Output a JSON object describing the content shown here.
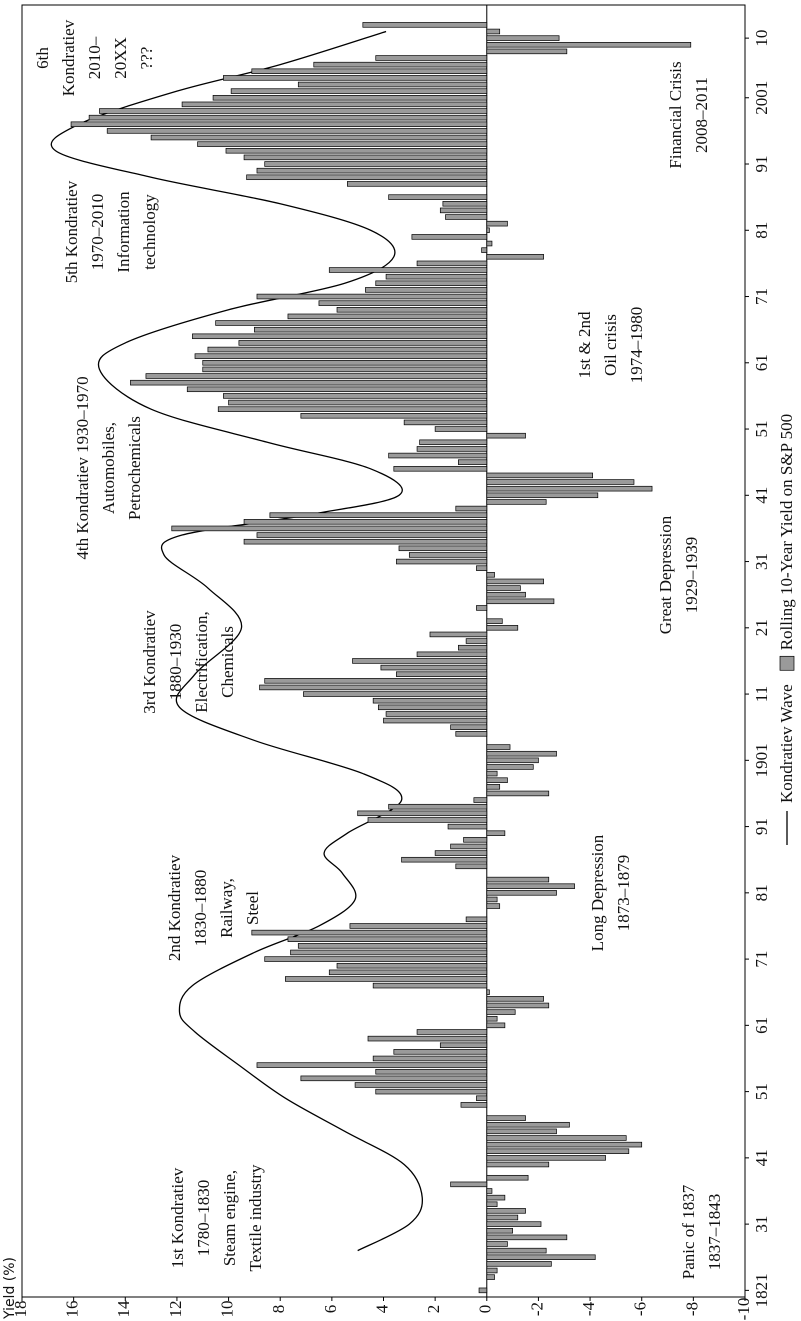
{
  "chart_data": {
    "type": "bar",
    "orientation": "horizontal",
    "x_label": "Rolling 10-Year Yield on S&P 500",
    "y_label": "Yield (%)",
    "xlim": [
      1820,
      2015
    ],
    "xticks": [
      1821,
      {
        "value": 1831,
        "label": "31"
      },
      {
        "value": 1841,
        "label": "41"
      },
      {
        "value": 1851,
        "label": "51"
      },
      {
        "value": 1861,
        "label": "61"
      },
      {
        "value": 1871,
        "label": "71"
      },
      {
        "value": 1881,
        "label": "81"
      },
      {
        "value": 1891,
        "label": "91"
      },
      1901,
      {
        "value": 1911,
        "label": "11"
      },
      {
        "value": 1921,
        "label": "21"
      },
      {
        "value": 1931,
        "label": "31"
      },
      {
        "value": 1941,
        "label": "41"
      },
      {
        "value": 1951,
        "label": "51"
      },
      {
        "value": 1961,
        "label": "61"
      },
      {
        "value": 1971,
        "label": "71"
      },
      {
        "value": 1981,
        "label": "81"
      },
      {
        "value": 1991,
        "label": "91"
      },
      2001,
      {
        "value": 2010,
        "label": "10"
      }
    ],
    "ylim": [
      -10,
      18
    ],
    "yticks": [
      18,
      16,
      14,
      12,
      10,
      8,
      6,
      4,
      2,
      0,
      -2,
      -4,
      -6,
      -8,
      -10
    ],
    "x": [
      1821,
      1822,
      1823,
      1824,
      1825,
      1826,
      1827,
      1828,
      1829,
      1830,
      1831,
      1832,
      1833,
      1834,
      1835,
      1836,
      1837,
      1838,
      1839,
      1840,
      1841,
      1842,
      1843,
      1844,
      1845,
      1846,
      1847,
      1848,
      1849,
      1850,
      1851,
      1852,
      1853,
      1854,
      1855,
      1856,
      1857,
      1858,
      1859,
      1860,
      1861,
      1862,
      1863,
      1864,
      1865,
      1866,
      1867,
      1868,
      1869,
      1870,
      1871,
      1872,
      1873,
      1874,
      1875,
      1876,
      1877,
      1878,
      1879,
      1880,
      1881,
      1882,
      1883,
      1884,
      1885,
      1886,
      1887,
      1888,
      1889,
      1890,
      1891,
      1892,
      1893,
      1894,
      1895,
      1896,
      1897,
      1898,
      1899,
      1900,
      1901,
      1902,
      1903,
      1904,
      1905,
      1906,
      1907,
      1908,
      1909,
      1910,
      1911,
      1912,
      1913,
      1914,
      1915,
      1916,
      1917,
      1918,
      1919,
      1920,
      1921,
      1922,
      1923,
      1924,
      1925,
      1926,
      1927,
      1928,
      1929,
      1930,
      1931,
      1932,
      1933,
      1934,
      1935,
      1936,
      1937,
      1938,
      1939,
      1940,
      1941,
      1942,
      1943,
      1944,
      1945,
      1946,
      1947,
      1948,
      1949,
      1950,
      1951,
      1952,
      1953,
      1954,
      1955,
      1956,
      1957,
      1958,
      1959,
      1960,
      1961,
      1962,
      1963,
      1964,
      1965,
      1966,
      1967,
      1968,
      1969,
      1970,
      1971,
      1972,
      1973,
      1974,
      1975,
      1976,
      1977,
      1978,
      1979,
      1980,
      1981,
      1982,
      1983,
      1984,
      1985,
      1986,
      1987,
      1988,
      1989,
      1990,
      1991,
      1992,
      1993,
      1994,
      1995,
      1996,
      1997,
      1998,
      1999,
      2000,
      2001,
      2002,
      2003,
      2004,
      2005,
      2006,
      2007,
      2008,
      2009,
      2010,
      2011,
      2012
    ],
    "series": [
      {
        "name": "Kondratiev Wave",
        "type": "line",
        "color": "#000000",
        "x": [
          1827,
          1831,
          1835,
          1840,
          1845,
          1850,
          1855,
          1860,
          1863,
          1867,
          1872,
          1876,
          1880,
          1884,
          1887,
          1890,
          1895,
          1899,
          1904,
          1909,
          1914,
          1921,
          1927,
          1932,
          1935,
          1938,
          1941,
          1945,
          1949,
          1954,
          1960,
          1964,
          1969,
          1973,
          1977,
          1981,
          1985,
          1989,
          1993,
          1997,
          2002,
          2006,
          2011
        ],
        "values": [
          5.0,
          3.0,
          2.5,
          3.2,
          5.5,
          7.8,
          9.6,
          11.3,
          11.9,
          11.4,
          9.0,
          6.5,
          5.1,
          5.6,
          6.3,
          5.4,
          3.3,
          4.8,
          9.0,
          11.9,
          11.3,
          9.5,
          10.8,
          12.5,
          11.8,
          7.0,
          3.4,
          4.5,
          8.5,
          13.0,
          15.0,
          14.0,
          10.0,
          5.5,
          3.6,
          4.5,
          8.0,
          13.0,
          16.7,
          15.8,
          12.0,
          8.0,
          3.9
        ]
      },
      {
        "name": "Rolling 10-Year Yield on S&P 500",
        "type": "bar",
        "color": "#9a9a9a",
        "values": [
          0.3,
          0,
          -0.3,
          -0.4,
          -2.5,
          -4.2,
          -2.3,
          -0.8,
          -3.1,
          -1.0,
          -2.1,
          -1.2,
          -1.5,
          -0.4,
          -0.7,
          -0.2,
          1.4,
          -1.6,
          0,
          -2.4,
          -4.6,
          -5.5,
          -6.0,
          -5.4,
          -2.7,
          -3.2,
          -1.5,
          0,
          1.0,
          0.4,
          4.3,
          5.1,
          7.2,
          4.3,
          8.9,
          4.4,
          3.6,
          1.8,
          4.6,
          2.7,
          -0.7,
          -0.4,
          -1.1,
          -2.4,
          -2.2,
          -0.1,
          4.4,
          7.8,
          6.1,
          5.8,
          8.6,
          7.6,
          7.3,
          7.7,
          9.1,
          5.3,
          0.8,
          0,
          -0.5,
          -0.4,
          -2.7,
          -3.4,
          -2.4,
          0,
          1.2,
          3.3,
          2.0,
          1.4,
          0.9,
          -0.7,
          1.5,
          4.6,
          5.0,
          3.8,
          0.5,
          -2.4,
          -0.5,
          -0.8,
          -0.4,
          -1.8,
          -2.0,
          -2.7,
          -0.9,
          0,
          1.2,
          1.4,
          4.0,
          3.9,
          4.2,
          4.4,
          7.1,
          8.8,
          8.6,
          3.5,
          4.1,
          5.2,
          2.7,
          1.1,
          0.8,
          2.2,
          -1.2,
          -0.6,
          0,
          0.4,
          -2.6,
          -1.5,
          -1.3,
          -2.2,
          -0.3,
          0.4,
          3.5,
          3.0,
          3.4,
          9.4,
          8.9,
          12.2,
          9.4,
          8.4,
          1.2,
          -2.3,
          -4.3,
          -6.4,
          -5.7,
          -4.1,
          3.6,
          1.1,
          3.8,
          2.7,
          2.6,
          -1.5,
          2.0,
          3.2,
          7.2,
          10.4,
          10.0,
          10.2,
          11.6,
          13.8,
          13.2,
          11.0,
          11.0,
          11.3,
          10.8,
          9.6,
          11.4,
          9.0,
          10.5,
          7.7,
          5.8,
          6.5,
          8.9,
          4.7,
          4.3,
          3.9,
          6.1,
          2.7,
          -2.2,
          0.2,
          -0.2,
          2.9,
          -0.1,
          -0.8,
          1.6,
          1.8,
          1.7,
          3.8,
          0,
          5.4,
          9.3,
          8.9,
          8.6,
          9.4,
          10.1,
          11.2,
          13.0,
          14.7,
          16.1,
          15.4,
          15.0,
          11.8,
          10.6,
          9.9,
          7.3,
          10.2,
          9.1,
          6.7,
          4.3,
          -3.1,
          -7.9,
          -2.8,
          -0.5,
          4.8
        ]
      }
    ],
    "annotations": [
      {
        "lines": [
          "1st Kondratiev",
          "1780–1830",
          "Steam engine,",
          "Textile industry"
        ]
      },
      {
        "lines": [
          "2nd Kondratiev",
          "1830–1880",
          "Railway,",
          "Steel"
        ]
      },
      {
        "lines": [
          "3rd Kondratiev",
          "1880–1930",
          "Electrification,",
          "Chemicals"
        ]
      },
      {
        "lines": [
          "4th Kondratiev 1930–1970",
          "Automobiles,",
          "Petrochemicals"
        ]
      },
      {
        "lines": [
          "5th Kondratiev",
          "1970–2010",
          "Information",
          "technology"
        ]
      },
      {
        "lines": [
          "6th",
          "Kondratiev",
          "2010–",
          "20XX",
          "???"
        ]
      },
      {
        "lines": [
          "Panic of 1837",
          "1837–1843"
        ]
      },
      {
        "lines": [
          "Long Depression",
          "1873–1879"
        ]
      },
      {
        "lines": [
          "Great Depression",
          "1929–1939"
        ]
      },
      {
        "lines": [
          "1st & 2nd",
          "Oil crisis",
          "1974–1980"
        ]
      },
      {
        "lines": [
          "Financial Crisis",
          "2008–2011"
        ]
      }
    ]
  }
}
